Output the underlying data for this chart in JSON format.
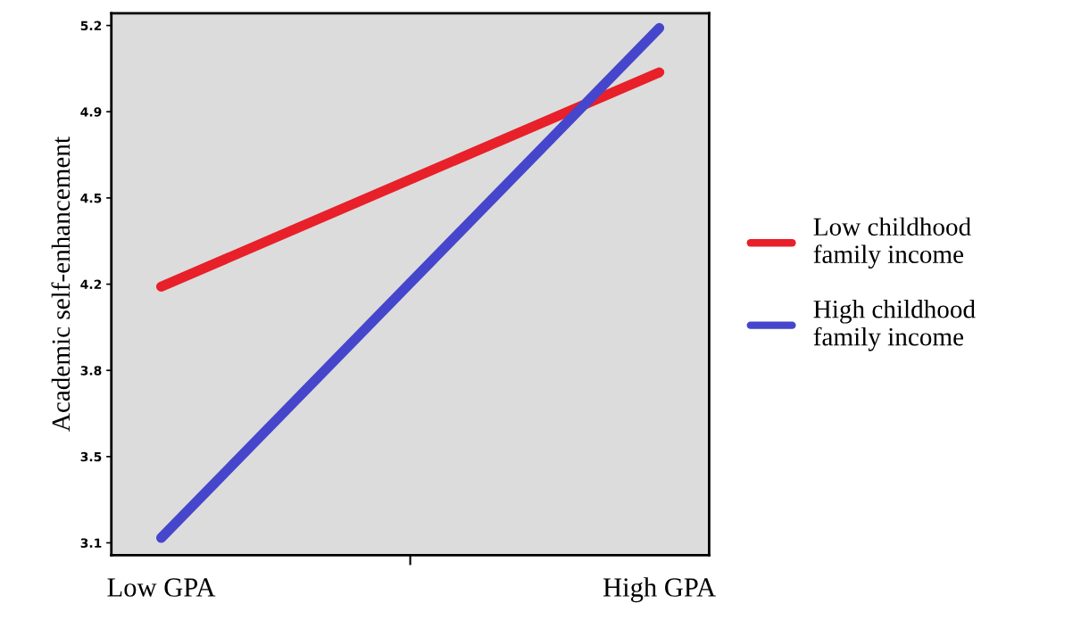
{
  "chart_data": {
    "type": "line",
    "ylabel": "Academic self-enhancement",
    "categories": [
      "Low GPA",
      "High GPA"
    ],
    "series": [
      {
        "name": "Low childhood family income",
        "color": "#e8202a",
        "values": [
          4.14,
          5.01
        ]
      },
      {
        "name": "High childhood family income",
        "color": "#4646cc",
        "values": [
          3.12,
          5.19
        ]
      }
    ],
    "ylim": [
      3.05,
      5.25
    ],
    "yticks": [
      3.1,
      {
        "value": 3.45,
        "label": "3.5"
      },
      3.8,
      {
        "value": 4.15,
        "label": "4.2"
      },
      4.5,
      {
        "value": 4.85,
        "label": "4.9"
      },
      5.2
    ],
    "grid": false,
    "legend": "right",
    "line_style": "solid"
  }
}
